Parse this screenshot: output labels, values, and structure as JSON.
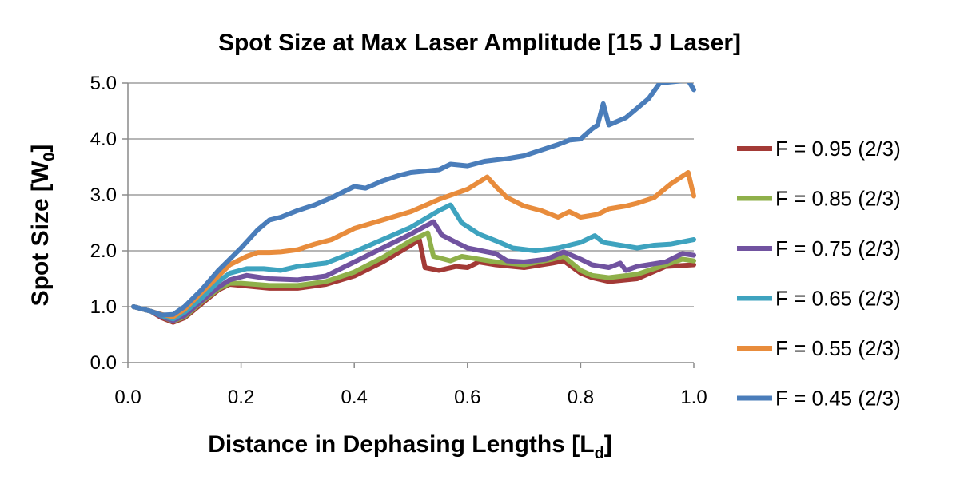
{
  "chart_data": {
    "type": "line",
    "title": "Spot Size at Max Laser Amplitude [15 J Laser]",
    "xlabel": {
      "main": "Distance in Dephasing Lengths [L",
      "sub": "d",
      "end": "]"
    },
    "ylabel": {
      "main": "Spot Size [W",
      "sub": "0",
      "end": "]"
    },
    "xlim": [
      0,
      1
    ],
    "ylim": [
      0,
      5
    ],
    "x_ticks": [
      "0.0",
      "0.2",
      "0.4",
      "0.6",
      "0.8",
      "1.0"
    ],
    "y_ticks": [
      "0.0",
      "1.0",
      "2.0",
      "3.0",
      "4.0",
      "5.0"
    ],
    "legend_position": "right",
    "series": [
      {
        "name": "F = 0.95 (2/3)",
        "color": "#A33A36",
        "points": [
          [
            0.01,
            1.0
          ],
          [
            0.04,
            0.92
          ],
          [
            0.06,
            0.8
          ],
          [
            0.08,
            0.72
          ],
          [
            0.1,
            0.8
          ],
          [
            0.13,
            1.05
          ],
          [
            0.16,
            1.3
          ],
          [
            0.18,
            1.4
          ],
          [
            0.2,
            1.38
          ],
          [
            0.25,
            1.33
          ],
          [
            0.3,
            1.33
          ],
          [
            0.35,
            1.4
          ],
          [
            0.4,
            1.55
          ],
          [
            0.45,
            1.8
          ],
          [
            0.5,
            2.1
          ],
          [
            0.515,
            2.2
          ],
          [
            0.525,
            1.7
          ],
          [
            0.55,
            1.65
          ],
          [
            0.58,
            1.72
          ],
          [
            0.6,
            1.7
          ],
          [
            0.62,
            1.8
          ],
          [
            0.65,
            1.75
          ],
          [
            0.7,
            1.7
          ],
          [
            0.75,
            1.78
          ],
          [
            0.77,
            1.82
          ],
          [
            0.8,
            1.6
          ],
          [
            0.82,
            1.52
          ],
          [
            0.85,
            1.45
          ],
          [
            0.9,
            1.5
          ],
          [
            0.95,
            1.72
          ],
          [
            1.0,
            1.75
          ]
        ]
      },
      {
        "name": "F = 0.85 (2/3)",
        "color": "#8FB04A",
        "points": [
          [
            0.01,
            1.0
          ],
          [
            0.04,
            0.92
          ],
          [
            0.06,
            0.82
          ],
          [
            0.08,
            0.74
          ],
          [
            0.1,
            0.82
          ],
          [
            0.13,
            1.08
          ],
          [
            0.16,
            1.32
          ],
          [
            0.18,
            1.42
          ],
          [
            0.2,
            1.42
          ],
          [
            0.25,
            1.38
          ],
          [
            0.3,
            1.38
          ],
          [
            0.35,
            1.45
          ],
          [
            0.4,
            1.62
          ],
          [
            0.45,
            1.88
          ],
          [
            0.5,
            2.18
          ],
          [
            0.53,
            2.32
          ],
          [
            0.54,
            1.9
          ],
          [
            0.57,
            1.82
          ],
          [
            0.59,
            1.9
          ],
          [
            0.62,
            1.85
          ],
          [
            0.65,
            1.8
          ],
          [
            0.7,
            1.75
          ],
          [
            0.75,
            1.85
          ],
          [
            0.77,
            1.9
          ],
          [
            0.8,
            1.65
          ],
          [
            0.82,
            1.56
          ],
          [
            0.85,
            1.52
          ],
          [
            0.9,
            1.58
          ],
          [
            0.95,
            1.75
          ],
          [
            0.98,
            1.85
          ],
          [
            1.0,
            1.82
          ]
        ]
      },
      {
        "name": "F = 0.75 (2/3)",
        "color": "#7153A0",
        "points": [
          [
            0.01,
            1.0
          ],
          [
            0.04,
            0.92
          ],
          [
            0.06,
            0.82
          ],
          [
            0.08,
            0.75
          ],
          [
            0.1,
            0.84
          ],
          [
            0.13,
            1.1
          ],
          [
            0.16,
            1.35
          ],
          [
            0.18,
            1.48
          ],
          [
            0.21,
            1.56
          ],
          [
            0.25,
            1.5
          ],
          [
            0.3,
            1.48
          ],
          [
            0.35,
            1.55
          ],
          [
            0.4,
            1.8
          ],
          [
            0.45,
            2.05
          ],
          [
            0.5,
            2.3
          ],
          [
            0.54,
            2.52
          ],
          [
            0.555,
            2.28
          ],
          [
            0.58,
            2.15
          ],
          [
            0.6,
            2.05
          ],
          [
            0.65,
            1.95
          ],
          [
            0.67,
            1.82
          ],
          [
            0.7,
            1.8
          ],
          [
            0.74,
            1.85
          ],
          [
            0.77,
            1.98
          ],
          [
            0.8,
            1.85
          ],
          [
            0.82,
            1.75
          ],
          [
            0.85,
            1.7
          ],
          [
            0.87,
            1.78
          ],
          [
            0.88,
            1.65
          ],
          [
            0.9,
            1.72
          ],
          [
            0.95,
            1.8
          ],
          [
            0.98,
            1.95
          ],
          [
            1.0,
            1.92
          ]
        ]
      },
      {
        "name": "F = 0.65 (2/3)",
        "color": "#3EA3BF",
        "points": [
          [
            0.01,
            1.0
          ],
          [
            0.04,
            0.92
          ],
          [
            0.06,
            0.84
          ],
          [
            0.08,
            0.78
          ],
          [
            0.1,
            0.9
          ],
          [
            0.13,
            1.15
          ],
          [
            0.16,
            1.45
          ],
          [
            0.18,
            1.6
          ],
          [
            0.21,
            1.68
          ],
          [
            0.24,
            1.68
          ],
          [
            0.27,
            1.65
          ],
          [
            0.3,
            1.72
          ],
          [
            0.35,
            1.78
          ],
          [
            0.4,
            1.98
          ],
          [
            0.45,
            2.2
          ],
          [
            0.5,
            2.42
          ],
          [
            0.55,
            2.72
          ],
          [
            0.57,
            2.82
          ],
          [
            0.59,
            2.5
          ],
          [
            0.62,
            2.3
          ],
          [
            0.65,
            2.18
          ],
          [
            0.68,
            2.05
          ],
          [
            0.72,
            2.0
          ],
          [
            0.76,
            2.05
          ],
          [
            0.8,
            2.15
          ],
          [
            0.825,
            2.27
          ],
          [
            0.84,
            2.15
          ],
          [
            0.87,
            2.1
          ],
          [
            0.9,
            2.05
          ],
          [
            0.93,
            2.1
          ],
          [
            0.96,
            2.12
          ],
          [
            1.0,
            2.2
          ]
        ]
      },
      {
        "name": "F = 0.55 (2/3)",
        "color": "#E88C3C",
        "points": [
          [
            0.01,
            1.0
          ],
          [
            0.04,
            0.92
          ],
          [
            0.06,
            0.86
          ],
          [
            0.08,
            0.82
          ],
          [
            0.1,
            0.95
          ],
          [
            0.13,
            1.25
          ],
          [
            0.16,
            1.55
          ],
          [
            0.18,
            1.75
          ],
          [
            0.21,
            1.9
          ],
          [
            0.23,
            1.97
          ],
          [
            0.25,
            1.97
          ],
          [
            0.27,
            1.98
          ],
          [
            0.3,
            2.02
          ],
          [
            0.33,
            2.12
          ],
          [
            0.36,
            2.2
          ],
          [
            0.4,
            2.4
          ],
          [
            0.45,
            2.55
          ],
          [
            0.5,
            2.7
          ],
          [
            0.55,
            2.92
          ],
          [
            0.6,
            3.1
          ],
          [
            0.635,
            3.32
          ],
          [
            0.65,
            3.15
          ],
          [
            0.67,
            2.95
          ],
          [
            0.7,
            2.8
          ],
          [
            0.73,
            2.72
          ],
          [
            0.76,
            2.6
          ],
          [
            0.78,
            2.7
          ],
          [
            0.8,
            2.6
          ],
          [
            0.83,
            2.65
          ],
          [
            0.85,
            2.75
          ],
          [
            0.88,
            2.8
          ],
          [
            0.9,
            2.85
          ],
          [
            0.93,
            2.95
          ],
          [
            0.96,
            3.2
          ],
          [
            0.99,
            3.4
          ],
          [
            1.0,
            2.98
          ]
        ]
      },
      {
        "name": "F = 0.45 (2/3)",
        "color": "#4A7DBA",
        "points": [
          [
            0.01,
            1.0
          ],
          [
            0.04,
            0.92
          ],
          [
            0.06,
            0.85
          ],
          [
            0.08,
            0.86
          ],
          [
            0.1,
            1.0
          ],
          [
            0.13,
            1.3
          ],
          [
            0.16,
            1.65
          ],
          [
            0.2,
            2.05
          ],
          [
            0.23,
            2.38
          ],
          [
            0.25,
            2.55
          ],
          [
            0.27,
            2.6
          ],
          [
            0.3,
            2.72
          ],
          [
            0.33,
            2.82
          ],
          [
            0.36,
            2.95
          ],
          [
            0.4,
            3.15
          ],
          [
            0.42,
            3.12
          ],
          [
            0.45,
            3.25
          ],
          [
            0.48,
            3.35
          ],
          [
            0.5,
            3.4
          ],
          [
            0.55,
            3.45
          ],
          [
            0.57,
            3.55
          ],
          [
            0.6,
            3.52
          ],
          [
            0.63,
            3.6
          ],
          [
            0.67,
            3.65
          ],
          [
            0.7,
            3.7
          ],
          [
            0.73,
            3.8
          ],
          [
            0.76,
            3.9
          ],
          [
            0.78,
            3.98
          ],
          [
            0.8,
            4.0
          ],
          [
            0.82,
            4.18
          ],
          [
            0.83,
            4.25
          ],
          [
            0.84,
            4.63
          ],
          [
            0.85,
            4.25
          ],
          [
            0.88,
            4.38
          ],
          [
            0.9,
            4.55
          ],
          [
            0.92,
            4.72
          ],
          [
            0.94,
            5.0
          ],
          [
            0.99,
            5.05
          ],
          [
            1.0,
            4.88
          ]
        ]
      }
    ]
  }
}
